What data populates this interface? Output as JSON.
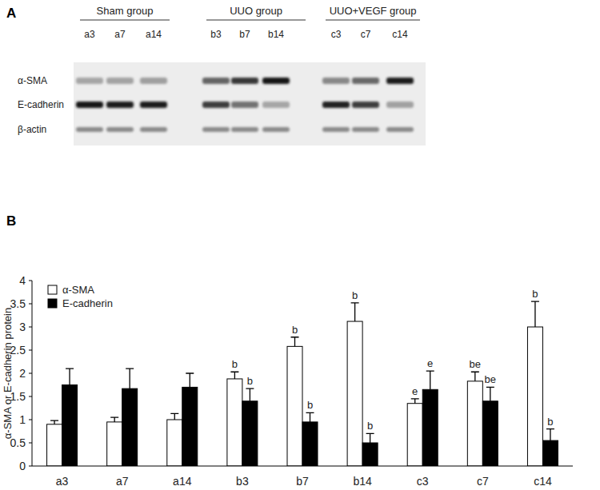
{
  "panel_labels": [
    "A",
    "B"
  ],
  "panel_a": {
    "groups": [
      {
        "name": "Sham group",
        "lanes": [
          "a3",
          "a7",
          "a14"
        ]
      },
      {
        "name": "UUO group",
        "lanes": [
          "b3",
          "b7",
          "b14"
        ]
      },
      {
        "name": "UUO+VEGF group",
        "lanes": [
          "c3",
          "c7",
          "c14"
        ]
      }
    ],
    "rows": [
      "α-SMA",
      "E-cadherin",
      "β-actin"
    ]
  },
  "chart_data": {
    "type": "bar",
    "y_label": "α-SMA or E-cadherin protein",
    "categories": [
      "a3",
      "a7",
      "a14",
      "b3",
      "b7",
      "b14",
      "c3",
      "c7",
      "c14"
    ],
    "series": [
      {
        "name": "α-SMA",
        "color": "#ffffff",
        "values": [
          0.9,
          0.95,
          1.0,
          1.88,
          2.58,
          3.12,
          1.35,
          1.83,
          3.0
        ],
        "errors": [
          0.08,
          0.1,
          0.13,
          0.15,
          0.2,
          0.4,
          0.1,
          0.2,
          0.55
        ],
        "significance": [
          null,
          null,
          null,
          "b",
          "b",
          "b",
          "e",
          "be",
          "b"
        ]
      },
      {
        "name": "E-cadherin",
        "color": "#000000",
        "values": [
          1.75,
          1.67,
          1.7,
          1.4,
          0.95,
          0.5,
          1.65,
          1.4,
          0.55
        ],
        "errors": [
          0.35,
          0.43,
          0.3,
          0.27,
          0.2,
          0.2,
          0.4,
          0.3,
          0.25
        ],
        "significance": [
          null,
          null,
          null,
          "b",
          "b",
          "b",
          "e",
          "be",
          "b"
        ]
      }
    ],
    "ylim": [
      0,
      4
    ],
    "yticks": [
      0,
      0.5,
      1,
      1.5,
      2,
      2.5,
      3,
      3.5,
      4
    ],
    "grid": false,
    "legend": "top-left"
  }
}
